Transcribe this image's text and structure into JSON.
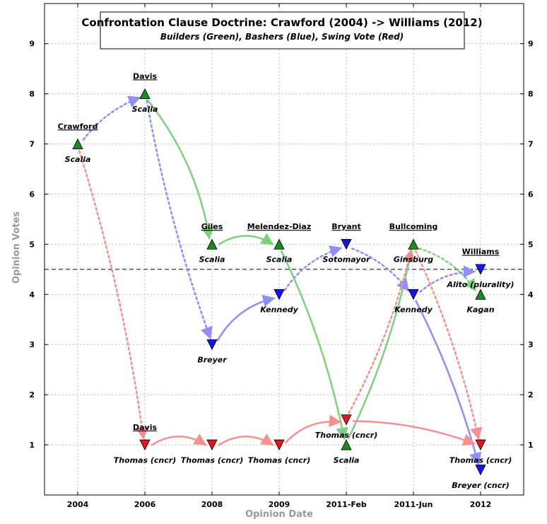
{
  "chart_data": {
    "type": "scatter",
    "title": "Confrontation Clause Doctrine: Crawford (2004) -> Williams (2012)",
    "subtitle": "Builders (Green), Bashers (Blue), Swing Vote (Red)",
    "xlabel": "Opinion Date",
    "ylabel": "Opinion Votes",
    "categories": [
      "2004",
      "2006",
      "2008",
      "2009",
      "2011-Feb",
      "2011-Jun",
      "2012"
    ],
    "yticks": [
      "1",
      "2",
      "3",
      "4",
      "5",
      "6",
      "7",
      "8",
      "9"
    ],
    "ylim": [
      0,
      9.8
    ],
    "threshold": 4.5,
    "grid": true,
    "colors": {
      "builder": "#1e8a1e",
      "basher": "#1515e6",
      "swing": "#e61515",
      "grid": "#bbbbbb"
    },
    "cases": [
      {
        "name": "Crawford",
        "x": 0,
        "y": 7.3
      },
      {
        "name": "Davis",
        "x": 1,
        "y": 8.3
      },
      {
        "name": "Davis",
        "x": 1,
        "y": 1.3
      },
      {
        "name": "Giles",
        "x": 2,
        "y": 5.3
      },
      {
        "name": "Melendez-Diaz",
        "x": 3,
        "y": 5.3
      },
      {
        "name": "Bryant",
        "x": 4,
        "y": 5.3
      },
      {
        "name": "Bullcoming",
        "x": 5,
        "y": 5.3
      },
      {
        "name": "Williams",
        "x": 6,
        "y": 4.8
      }
    ],
    "points": [
      {
        "id": "p0",
        "group": "builder",
        "x": 0,
        "y": 7,
        "label": "Scalia",
        "lx": 0,
        "ly": 6.7
      },
      {
        "id": "p1",
        "group": "builder",
        "x": 1,
        "y": 8,
        "label": "Scalia",
        "lx": 1,
        "ly": 7.7
      },
      {
        "id": "p2",
        "group": "swing",
        "x": 1,
        "y": 1,
        "label": "Thomas (cncr)",
        "lx": 1,
        "ly": 0.7
      },
      {
        "id": "p3",
        "group": "builder",
        "x": 2,
        "y": 5,
        "label": "Scalia",
        "lx": 2,
        "ly": 4.7
      },
      {
        "id": "p4",
        "group": "basher",
        "x": 2,
        "y": 3,
        "label": "Breyer",
        "lx": 2,
        "ly": 2.7
      },
      {
        "id": "p5",
        "group": "swing",
        "x": 2,
        "y": 1,
        "label": "Thomas (cncr)",
        "lx": 2,
        "ly": 0.7
      },
      {
        "id": "p6",
        "group": "builder",
        "x": 3,
        "y": 5,
        "label": "Scalia",
        "lx": 3,
        "ly": 4.7
      },
      {
        "id": "p7",
        "group": "basher",
        "x": 3,
        "y": 4,
        "label": "Kennedy",
        "lx": 3,
        "ly": 3.7
      },
      {
        "id": "p8",
        "group": "swing",
        "x": 3,
        "y": 1,
        "label": "Thomas (cncr)",
        "lx": 3,
        "ly": 0.7
      },
      {
        "id": "p9",
        "group": "basher",
        "x": 4,
        "y": 5,
        "label": "Sotomayor",
        "lx": 4,
        "ly": 4.7
      },
      {
        "id": "p10",
        "group": "swing",
        "x": 4,
        "y": 1.5,
        "label": "Thomas (cncr)",
        "lx": 4,
        "ly": 1.2
      },
      {
        "id": "p11",
        "group": "builder",
        "x": 4,
        "y": 1,
        "label": "Scalia",
        "lx": 4,
        "ly": 0.7
      },
      {
        "id": "p12",
        "group": "builder",
        "x": 5,
        "y": 5,
        "label": "Ginsburg",
        "lx": 5,
        "ly": 4.7
      },
      {
        "id": "p13",
        "group": "basher",
        "x": 5,
        "y": 4,
        "label": "Kennedy",
        "lx": 5,
        "ly": 3.7
      },
      {
        "id": "p14",
        "group": "basher",
        "x": 6,
        "y": 4.5,
        "label": "Alito (plurality)",
        "lx": 6,
        "ly": 4.2
      },
      {
        "id": "p15",
        "group": "builder",
        "x": 6,
        "y": 4,
        "label": "Kagan",
        "lx": 6,
        "ly": 3.7
      },
      {
        "id": "p16",
        "group": "swing",
        "x": 6,
        "y": 1,
        "label": "Thomas (cncr)",
        "lx": 6,
        "ly": 0.7
      },
      {
        "id": "p17",
        "group": "basher",
        "x": 6,
        "y": 0.5,
        "label": "Breyer (cncr)",
        "lx": 6,
        "ly": 0.2
      }
    ],
    "links": [
      {
        "group": "basher",
        "from": [
          0,
          7
        ],
        "to": [
          1,
          8
        ],
        "style": "dotted",
        "bend": 0.12
      },
      {
        "group": "swing",
        "from": [
          0,
          7
        ],
        "to": [
          1,
          1
        ],
        "style": "dotted",
        "bend": 0.04
      },
      {
        "group": "builder",
        "from": [
          1,
          8
        ],
        "to": [
          2,
          5
        ],
        "style": "solid",
        "bend": 0.12
      },
      {
        "group": "basher",
        "from": [
          1,
          8
        ],
        "to": [
          2,
          3
        ],
        "style": "dotted",
        "bend": -0.04
      },
      {
        "group": "swing",
        "from": [
          1,
          1
        ],
        "to": [
          2,
          1
        ],
        "style": "solid",
        "bend": 0.25
      },
      {
        "group": "builder",
        "from": [
          2,
          5
        ],
        "to": [
          3,
          5
        ],
        "style": "solid",
        "bend": 0.25
      },
      {
        "group": "basher",
        "from": [
          2,
          3
        ],
        "to": [
          3,
          4
        ],
        "style": "solid",
        "bend": 0.18
      },
      {
        "group": "swing",
        "from": [
          2,
          1
        ],
        "to": [
          3,
          1
        ],
        "style": "solid",
        "bend": 0.25
      },
      {
        "group": "builder",
        "from": [
          3,
          5
        ],
        "to": [
          4,
          1
        ],
        "style": "solid",
        "bend": 0.06
      },
      {
        "group": "basher",
        "from": [
          3,
          4
        ],
        "to": [
          4,
          5
        ],
        "style": "dotted",
        "bend": 0.15
      },
      {
        "group": "swing",
        "from": [
          3,
          1
        ],
        "to": [
          4,
          1.5
        ],
        "style": "solid",
        "bend": 0.2
      },
      {
        "group": "builder",
        "from": [
          4,
          1
        ],
        "to": [
          5,
          5
        ],
        "style": "solid",
        "bend": -0.06
      },
      {
        "group": "basher",
        "from": [
          4,
          5
        ],
        "to": [
          5,
          4
        ],
        "style": "dotted",
        "bend": 0.12
      },
      {
        "group": "swing",
        "from": [
          4,
          1.5
        ],
        "to": [
          5,
          5
        ],
        "style": "dotted",
        "bend": -0.06
      },
      {
        "group": "builder",
        "from": [
          5,
          5
        ],
        "to": [
          6,
          4
        ],
        "style": "dotted",
        "bend": 0.15
      },
      {
        "group": "basher",
        "from": [
          5,
          4
        ],
        "to": [
          6,
          4.5
        ],
        "style": "dotted",
        "bend": 0.15
      },
      {
        "group": "swing",
        "from": [
          5,
          5
        ],
        "to": [
          6,
          1
        ],
        "style": "dotted",
        "bend": 0.05
      },
      {
        "group": "basher",
        "from": [
          5,
          4
        ],
        "to": [
          6,
          0.5
        ],
        "style": "solid",
        "bend": 0.05
      },
      {
        "group": "swing",
        "from": [
          4,
          1.5
        ],
        "to": [
          6,
          1
        ],
        "style": "solid",
        "bend": 0.08
      }
    ]
  }
}
